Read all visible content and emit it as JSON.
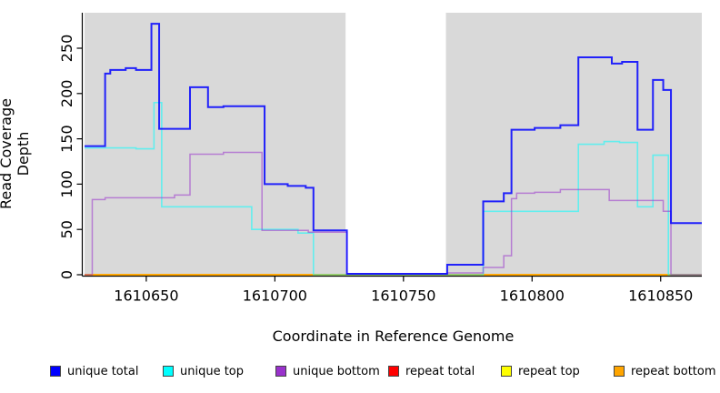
{
  "chart_data": {
    "type": "line",
    "subtype": "step-coverage",
    "title": "",
    "xlabel": "Coordinate in Reference Genome",
    "ylabel": "Read Coverage Depth",
    "xlim": [
      1610626,
      1610866
    ],
    "ylim": [
      0,
      289
    ],
    "x_ticks": [
      1610650,
      1610700,
      1610750,
      1610800,
      1610850
    ],
    "y_ticks": [
      0,
      50,
      100,
      150,
      200,
      250
    ],
    "grid": "off",
    "plot_bg": "#d9d9d9",
    "gap_region": {
      "x_start": 1610727.5,
      "x_end": 1610766.5,
      "color": "#ffffff"
    },
    "legend_position": "bottom",
    "legend": [
      {
        "label": "unique total",
        "color": "#0000ff"
      },
      {
        "label": "unique top",
        "color": "#00ffff"
      },
      {
        "label": "unique bottom",
        "color": "#9932cc"
      },
      {
        "label": "repeat total",
        "color": "#ff0000"
      },
      {
        "label": "repeat top",
        "color": "#ffff00"
      },
      {
        "label": "repeat bottom",
        "color": "#ffa500"
      }
    ],
    "series": [
      {
        "name": "repeat total",
        "color": "#ff0000",
        "opacity": 1,
        "width": 1.6,
        "steps": [
          [
            1610626,
            0
          ]
        ]
      },
      {
        "name": "repeat top",
        "color": "#ffff00",
        "opacity": 1,
        "width": 1.6,
        "steps": [
          [
            1610626,
            0
          ]
        ]
      },
      {
        "name": "repeat bottom",
        "color": "#ffa500",
        "opacity": 1,
        "width": 1.8,
        "steps": [
          [
            1610626,
            0
          ]
        ]
      },
      {
        "name": "unique top",
        "color": "#00ffff",
        "opacity": 0.55,
        "width": 1.6,
        "steps": [
          [
            1610626,
            140
          ],
          [
            1610646,
            139
          ],
          [
            1610653,
            190
          ],
          [
            1610656,
            75
          ],
          [
            1610691,
            50
          ],
          [
            1610709,
            46
          ],
          [
            1610715,
            0
          ],
          [
            1610781,
            70
          ],
          [
            1610818,
            144
          ],
          [
            1610828,
            147
          ],
          [
            1610834,
            146
          ],
          [
            1610841,
            75
          ],
          [
            1610847,
            132
          ],
          [
            1610853,
            0
          ]
        ]
      },
      {
        "name": "unique bottom",
        "color": "#9932cc",
        "opacity": 0.55,
        "width": 1.5,
        "steps": [
          [
            1610626,
            0
          ],
          [
            1610629,
            83
          ],
          [
            1610634,
            85
          ],
          [
            1610661,
            88
          ],
          [
            1610667,
            133
          ],
          [
            1610680,
            135
          ],
          [
            1610695,
            49
          ],
          [
            1610713,
            47
          ],
          [
            1610728,
            1
          ],
          [
            1610767,
            2
          ],
          [
            1610781,
            8
          ],
          [
            1610789,
            21
          ],
          [
            1610792,
            84
          ],
          [
            1610794,
            90
          ],
          [
            1610801,
            91
          ],
          [
            1610811,
            94
          ],
          [
            1610830,
            82
          ],
          [
            1610851,
            70
          ],
          [
            1610854,
            0
          ]
        ]
      },
      {
        "name": "unique total",
        "color": "#0000ff",
        "opacity": 0.85,
        "width": 2,
        "steps": [
          [
            1610626,
            142
          ],
          [
            1610634,
            222
          ],
          [
            1610636,
            226
          ],
          [
            1610642,
            228
          ],
          [
            1610646,
            226
          ],
          [
            1610652,
            277
          ],
          [
            1610655,
            161
          ],
          [
            1610667,
            207
          ],
          [
            1610674,
            185
          ],
          [
            1610680,
            186
          ],
          [
            1610696,
            100
          ],
          [
            1610705,
            98
          ],
          [
            1610712,
            96
          ],
          [
            1610715,
            49
          ],
          [
            1610728,
            1
          ],
          [
            1610767,
            11
          ],
          [
            1610781,
            81
          ],
          [
            1610789,
            90
          ],
          [
            1610792,
            160
          ],
          [
            1610801,
            162
          ],
          [
            1610811,
            165
          ],
          [
            1610818,
            240
          ],
          [
            1610831,
            233
          ],
          [
            1610835,
            235
          ],
          [
            1610841,
            160
          ],
          [
            1610847,
            215
          ],
          [
            1610851,
            204
          ],
          [
            1610854,
            57
          ]
        ]
      }
    ]
  }
}
